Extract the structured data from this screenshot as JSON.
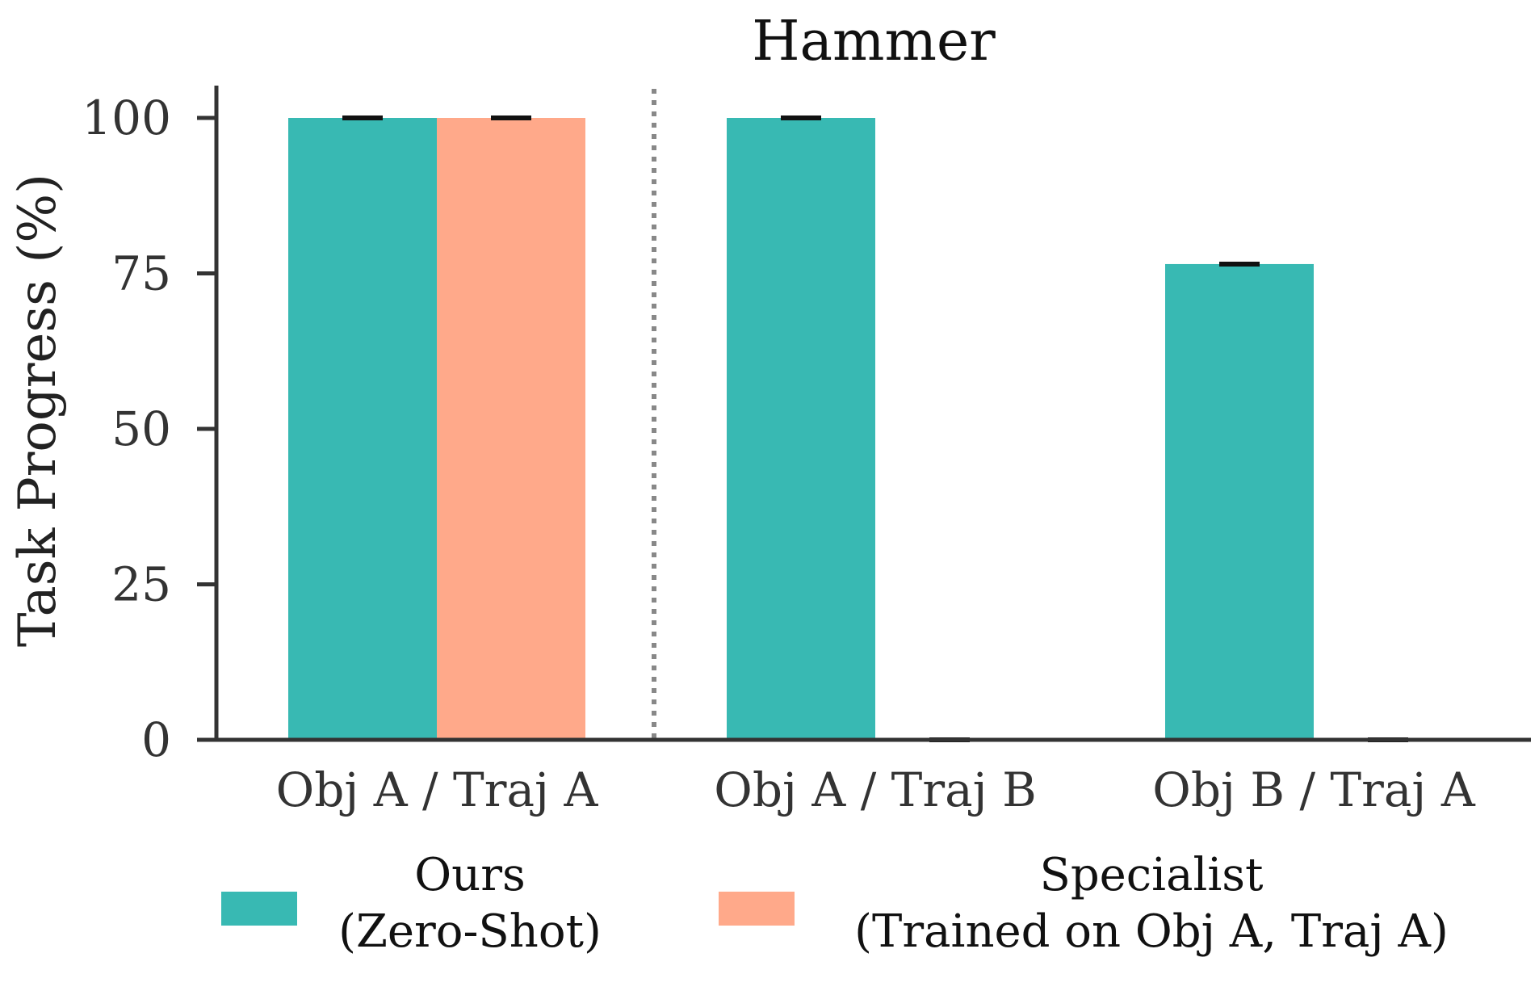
{
  "chart_data": {
    "type": "bar",
    "title": "Hammer",
    "xlabel": "",
    "ylabel": "Task Progress (%)",
    "ylim": [
      0,
      100
    ],
    "yticks": [
      "0",
      "25",
      "50",
      "75",
      "100"
    ],
    "categories": [
      "Obj A / Traj A",
      "Obj A / Traj B",
      "Obj B / Traj A"
    ],
    "series": [
      {
        "name_line1": "Ours",
        "name_line2": "(Zero-Shot)",
        "color": "#38B9B3",
        "values": [
          100,
          100,
          76.5
        ],
        "errors": [
          0,
          0,
          0
        ]
      },
      {
        "name_line1": "Specialist",
        "name_line2": "(Trained on Obj A, Traj A)",
        "color": "#FFA98A",
        "values": [
          100,
          0,
          0
        ],
        "errors": [
          0,
          0,
          0
        ]
      }
    ],
    "divider_after_category": 0,
    "legend_position": "bottom",
    "grid": false
  }
}
